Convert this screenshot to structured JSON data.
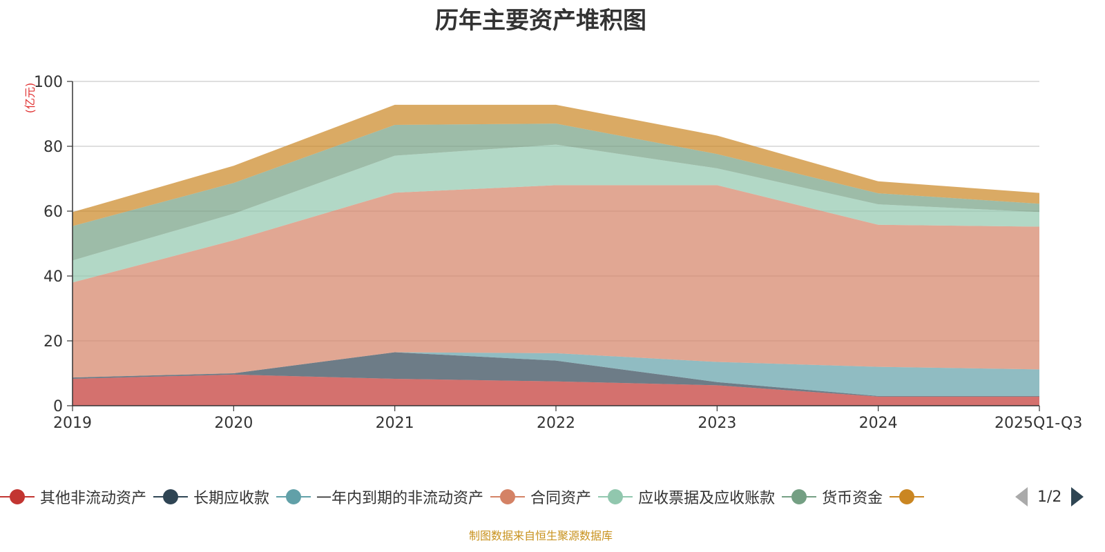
{
  "chart_data": {
    "type": "area",
    "stacked": true,
    "title": "历年主要资产堆积图",
    "ylabel": "(亿元)",
    "xlabel": "",
    "ylim": [
      0,
      100
    ],
    "yticks": [
      0,
      20,
      40,
      60,
      80,
      100
    ],
    "grid": true,
    "categories": [
      "2019",
      "2020",
      "2021",
      "2022",
      "2023",
      "2024",
      "2025Q1-Q3"
    ],
    "series": [
      {
        "name": "其他非流动资产",
        "color": "#c23531",
        "values": [
          8.3,
          9.6,
          8.3,
          7.5,
          6.3,
          2.8,
          2.8
        ]
      },
      {
        "name": "长期应收款",
        "color": "#2f4554",
        "values": [
          0.4,
          0.4,
          8.2,
          6.4,
          1.0,
          0.2,
          0.2
        ]
      },
      {
        "name": "一年内到期的非流动资产",
        "color": "#61a0a8",
        "values": [
          0.0,
          0.0,
          0.0,
          2.3,
          6.2,
          9.0,
          8.2
        ]
      },
      {
        "name": "合同资产",
        "color": "#d48265",
        "values": [
          29.3,
          41.0,
          49.2,
          51.8,
          54.5,
          43.8,
          44.0
        ]
      },
      {
        "name": "应收票据及应收账款",
        "color": "#91c7ae",
        "values": [
          6.8,
          8.2,
          11.4,
          12.5,
          5.2,
          6.3,
          4.5
        ]
      },
      {
        "name": "货币资金",
        "color": "#749f83",
        "values": [
          10.6,
          9.5,
          9.5,
          6.5,
          4.4,
          3.4,
          2.6
        ]
      },
      {
        "name": "",
        "color": "#ca8622",
        "values": [
          4.3,
          5.3,
          6.2,
          5.8,
          5.7,
          3.7,
          3.3
        ]
      }
    ]
  },
  "legend": {
    "page_indicator": "1/2"
  },
  "footer": {
    "source": "制图数据来自恒生聚源数据库"
  }
}
